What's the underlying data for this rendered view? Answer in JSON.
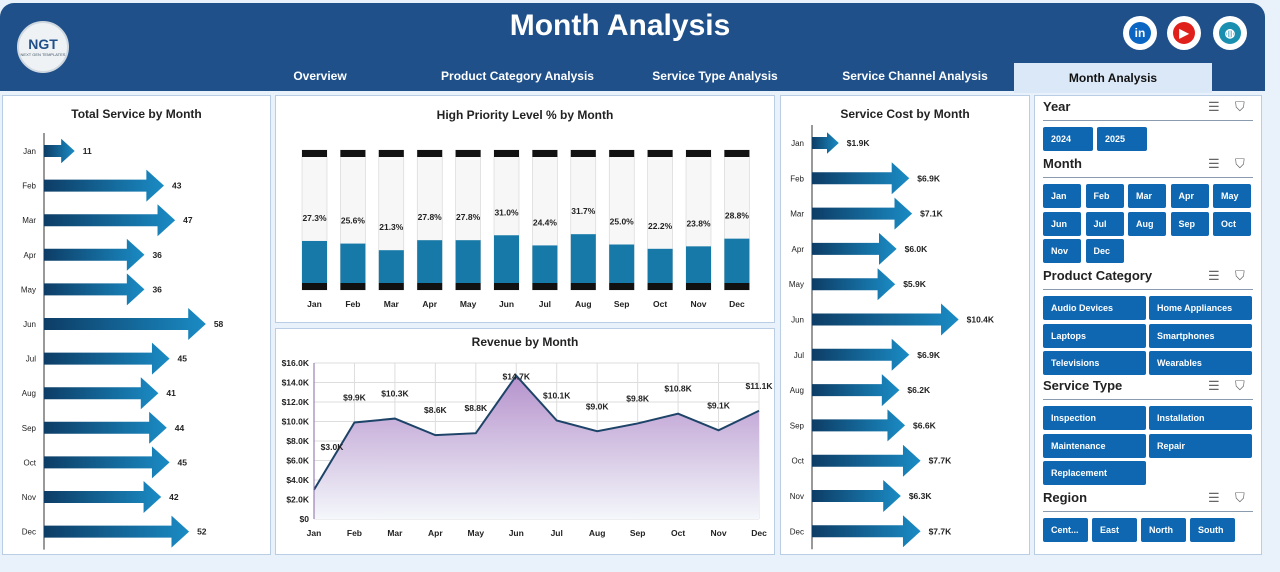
{
  "header": {
    "title": "Month Analysis",
    "logo_text": "NGT",
    "logo_sub": "NEXT GEN TEMPLATES",
    "social": [
      {
        "icon": "linkedin-icon",
        "glyph": "in",
        "color": "#0a66c2"
      },
      {
        "icon": "youtube-icon",
        "glyph": "▶",
        "color": "#e0201b"
      },
      {
        "icon": "globe-icon",
        "glyph": "◍",
        "color": "#1a8fb0"
      }
    ]
  },
  "nav": {
    "tabs": [
      "Overview",
      "Product Category Analysis",
      "Service Type Analysis",
      "Service Channel Analysis",
      "Month Analysis"
    ],
    "active": "Month Analysis"
  },
  "months": [
    "Jan",
    "Feb",
    "Mar",
    "Apr",
    "May",
    "Jun",
    "Jul",
    "Aug",
    "Sep",
    "Oct",
    "Nov",
    "Dec"
  ],
  "colors": {
    "header": "#1f5089",
    "accent": "#0f67b1",
    "bar_fill": "#1679a8",
    "area_top": "#b592cc"
  },
  "chart_data": [
    {
      "type": "bar",
      "orientation": "horizontal",
      "title": "Total Service by Month",
      "categories": [
        "Jan",
        "Feb",
        "Mar",
        "Apr",
        "May",
        "Jun",
        "Jul",
        "Aug",
        "Sep",
        "Oct",
        "Nov",
        "Dec"
      ],
      "values": [
        11,
        43,
        47,
        36,
        36,
        58,
        45,
        41,
        44,
        45,
        42,
        52
      ],
      "labels": [
        "11",
        "43",
        "47",
        "36",
        "36",
        "58",
        "45",
        "41",
        "44",
        "45",
        "42",
        "52"
      ]
    },
    {
      "type": "bar",
      "title": "High Priority Level % by Month",
      "categories": [
        "Jan",
        "Feb",
        "Mar",
        "Apr",
        "May",
        "Jun",
        "Jul",
        "Aug",
        "Sep",
        "Oct",
        "Nov",
        "Dec"
      ],
      "values": [
        27.3,
        25.6,
        21.3,
        27.8,
        27.8,
        31.0,
        24.4,
        31.7,
        25.0,
        22.2,
        23.8,
        28.8
      ],
      "labels": [
        "27.3%",
        "25.6%",
        "21.3%",
        "27.8%",
        "27.8%",
        "31.0%",
        "24.4%",
        "31.7%",
        "25.0%",
        "22.2%",
        "23.8%",
        "28.8%"
      ],
      "ylim": [
        0,
        100
      ]
    },
    {
      "type": "area",
      "title": "Revenue by Month",
      "categories": [
        "Jan",
        "Feb",
        "Mar",
        "Apr",
        "May",
        "Jun",
        "Jul",
        "Aug",
        "Sep",
        "Oct",
        "Nov",
        "Dec"
      ],
      "values": [
        3.0,
        9.9,
        10.3,
        8.6,
        8.8,
        14.7,
        10.1,
        9.0,
        9.8,
        10.8,
        9.1,
        11.1
      ],
      "labels": [
        "$3.0K",
        "$9.9K",
        "$10.3K",
        "$8.6K",
        "$8.8K",
        "$14.7K",
        "$10.1K",
        "$9.0K",
        "$9.8K",
        "$10.8K",
        "$9.1K",
        "$11.1K"
      ],
      "unit": "$K",
      "ylim": [
        0,
        16
      ],
      "yticks": [
        "$0",
        "$2.0K",
        "$4.0K",
        "$6.0K",
        "$8.0K",
        "$10.0K",
        "$12.0K",
        "$14.0K",
        "$16.0K"
      ],
      "grid": true
    },
    {
      "type": "bar",
      "orientation": "horizontal",
      "title": "Service Cost by Month",
      "categories": [
        "Jan",
        "Feb",
        "Mar",
        "Apr",
        "May",
        "Jun",
        "Jul",
        "Aug",
        "Sep",
        "Oct",
        "Nov",
        "Dec"
      ],
      "values": [
        1.9,
        6.9,
        7.1,
        6.0,
        5.9,
        10.4,
        6.9,
        6.2,
        6.6,
        7.7,
        6.3,
        7.7
      ],
      "labels": [
        "$1.9K",
        "$6.9K",
        "$7.1K",
        "$6.0K",
        "$5.9K",
        "$10.4K",
        "$6.9K",
        "$6.2K",
        "$6.6K",
        "$7.7K",
        "$6.3K",
        "$7.7K"
      ],
      "unit": "$K"
    }
  ],
  "slicers": [
    {
      "title": "Year",
      "items": [
        "2024",
        "2025"
      ]
    },
    {
      "title": "Month",
      "items": [
        "Jan",
        "Feb",
        "Mar",
        "Apr",
        "May",
        "Jun",
        "Jul",
        "Aug",
        "Sep",
        "Oct",
        "Nov",
        "Dec"
      ]
    },
    {
      "title": "Product Category",
      "items": [
        "Audio Devices",
        "Home Appliances",
        "Laptops",
        "Smartphones",
        "Televisions",
        "Wearables"
      ]
    },
    {
      "title": "Service Type",
      "items": [
        "Inspection",
        "Installation",
        "Maintenance",
        "Repair",
        "Replacement"
      ]
    },
    {
      "title": "Region",
      "items": [
        "Cent...",
        "East",
        "North",
        "South"
      ]
    }
  ]
}
